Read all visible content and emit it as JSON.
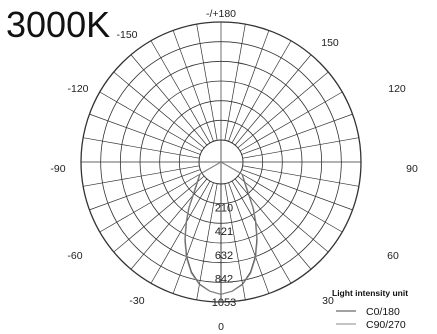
{
  "chart_data": {
    "type": "polar-line",
    "title": "3000K",
    "angle_labels": [
      "-/+180",
      "150",
      "120",
      "90",
      "60",
      "30",
      "0",
      "-30",
      "-60",
      "-90",
      "-120",
      "-150"
    ],
    "radial_ticks": [
      210,
      421,
      632,
      842,
      1053
    ],
    "r_max": 1053,
    "legend_title": "Light intensity unit",
    "series": [
      {
        "name": "C0/180",
        "angles_deg": [
          -90,
          -60,
          -45,
          -35,
          -30,
          -25,
          -20,
          -15,
          -10,
          -5,
          0,
          5,
          10,
          15,
          20,
          25,
          30,
          35,
          45,
          60,
          90
        ],
        "values": [
          0,
          20,
          120,
          300,
          420,
          560,
          700,
          820,
          910,
          960,
          985,
          960,
          910,
          820,
          700,
          560,
          420,
          300,
          120,
          20,
          0
        ]
      },
      {
        "name": "C90/270",
        "angles_deg": [
          -90,
          -60,
          -45,
          -35,
          -30,
          -25,
          -20,
          -15,
          -10,
          -5,
          0,
          5,
          10,
          15,
          20,
          25,
          30,
          35,
          45,
          60,
          90
        ],
        "values": [
          0,
          25,
          130,
          310,
          430,
          570,
          710,
          830,
          915,
          962,
          985,
          962,
          915,
          830,
          710,
          570,
          430,
          310,
          130,
          25,
          0
        ]
      }
    ]
  }
}
